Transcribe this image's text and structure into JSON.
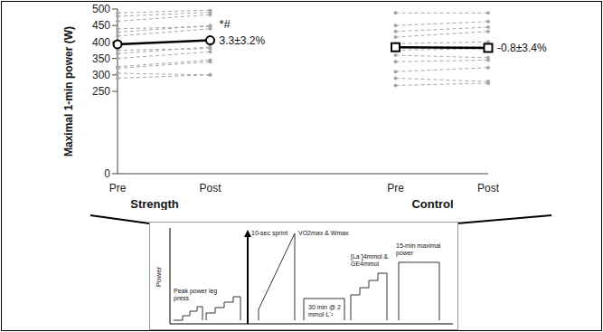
{
  "chart_data": {
    "type": "line",
    "y_label": "Maximal 1-min power (W)",
    "categories": [
      "Pre",
      "Post",
      null,
      "Pre",
      "Post"
    ],
    "ylim": [
      0,
      500
    ],
    "yticks": [
      0,
      250,
      300,
      350,
      400,
      450,
      500
    ],
    "groups": [
      {
        "label": "Strength",
        "individuals": {
          "color": "#a6a6a6",
          "line_style": "dashed",
          "marker": "circle",
          "values": [
            [
              488,
              497
            ],
            [
              478,
              490
            ],
            [
              463,
              483
            ],
            [
              440,
              447
            ],
            [
              430,
              450
            ],
            [
              418,
              440
            ],
            [
              395,
              405
            ],
            [
              375,
              380
            ],
            [
              365,
              385
            ],
            [
              350,
              370
            ],
            [
              325,
              345
            ],
            [
              320,
              340
            ],
            [
              305,
              300
            ],
            [
              290,
              300
            ]
          ]
        },
        "mean": {
          "color": "#000000",
          "line_style": "solid",
          "marker": "circle",
          "values": [
            393,
            405
          ]
        },
        "significance": "*#",
        "change_label": "3.3±3.2%"
      },
      {
        "label": "Control",
        "individuals": {
          "color": "#a6a6a6",
          "line_style": "dashed",
          "marker": "circle",
          "values": [
            [
              488,
              488
            ],
            [
              450,
              462
            ],
            [
              432,
              445
            ],
            [
              415,
              432
            ],
            [
              395,
              400
            ],
            [
              385,
              385
            ],
            [
              375,
              380
            ],
            [
              360,
              352
            ],
            [
              340,
              345
            ],
            [
              310,
              322
            ],
            [
              290,
              280
            ],
            [
              268,
              275
            ]
          ]
        },
        "mean": {
          "color": "#000000",
          "line_style": "solid",
          "marker": "square",
          "values": [
            384,
            382
          ]
        },
        "change_label": "-0.8±3.4%"
      }
    ]
  },
  "diagram": {
    "y_label": "Power",
    "stages": [
      {
        "label": "Peak power leg press"
      },
      {
        "label": "10-sec sprint"
      },
      {
        "label": "VO2max & Wmax"
      },
      {
        "label": "30 min @ 2 mmol·L⁻¹"
      },
      {
        "label": "[La⁻]4mmol & GE4mmol"
      },
      {
        "label": "15-min maximal power"
      }
    ]
  }
}
